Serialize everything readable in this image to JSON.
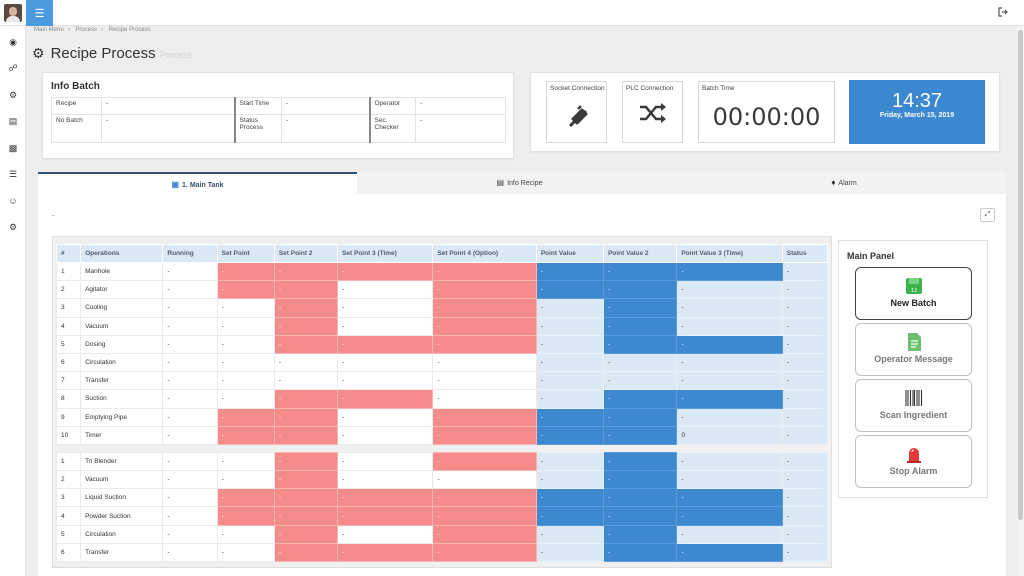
{
  "header": {
    "menu_icon": "hamburger-icon",
    "logout_icon": "logout-icon"
  },
  "sidebar": {
    "icons": [
      "dashboard-icon",
      "share-icon",
      "gear-icon",
      "document-icon",
      "book-icon",
      "database-icon",
      "user-icon",
      "settings-icon"
    ]
  },
  "breadcrumb": [
    "Main Menu",
    "Process",
    "Recipe Process"
  ],
  "page": {
    "title": "Recipe Process",
    "subtitle": "Process"
  },
  "info_batch": {
    "title": "Info Batch",
    "rows": [
      [
        "Recipe",
        "-",
        "Start Time",
        "-",
        "Operator",
        "-"
      ],
      [
        "No Batch",
        "-",
        "Status\nProcess",
        "-",
        "Sec.\nChecker",
        "-"
      ]
    ]
  },
  "status": {
    "socket_label": "Socket Connection",
    "socket_icon": "plug-icon",
    "plc_label": "PLC Connection",
    "plc_icon": "shuffle-icon",
    "batch_time_label": "Batch Time",
    "batch_time": "00:00:00"
  },
  "clock": {
    "time": "14:37",
    "date": "Friday, March 15, 2019"
  },
  "tabs": [
    {
      "label": "1. Main Tank",
      "icon": "tank-icon",
      "active": true
    },
    {
      "label": "Info Recipe",
      "icon": "document-icon",
      "active": false
    },
    {
      "label": "Alarm",
      "icon": "bell-icon",
      "active": false
    }
  ],
  "panel_header": "-",
  "table": {
    "columns": [
      "#",
      "Operations",
      "Running",
      "Set Point",
      "Set Point 2",
      "Set Point 3 (Time)",
      "Set Point 4 (Option)",
      "Point Value",
      "Point Value 2",
      "Point Value 3 (Time)",
      "Status"
    ],
    "group1": [
      {
        "n": "1",
        "op": "Manhole",
        "cells": [
          "-",
          "-",
          "-",
          "-",
          "-",
          "-",
          "-",
          "-",
          "-"
        ],
        "style": "rrrrbbbl"
      },
      {
        "n": "2",
        "op": "Agitator",
        "cells": [
          "-",
          "-",
          "-",
          "-",
          "-",
          "-",
          "-",
          "-",
          "-"
        ],
        "style": "rrwrbbll"
      },
      {
        "n": "3",
        "op": "Cooling",
        "cells": [
          "-",
          "-",
          "-",
          "-",
          "-",
          "-",
          "-",
          "-",
          "-"
        ],
        "style": "wrwrlbll"
      },
      {
        "n": "4",
        "op": "Vacuum",
        "cells": [
          "-",
          "-",
          "-",
          "-",
          "-",
          "-",
          "-",
          "-",
          "-"
        ],
        "style": "wrwrlbll"
      },
      {
        "n": "5",
        "op": "Dosing",
        "cells": [
          "-",
          "-",
          "-",
          "-",
          "-",
          "-",
          "-",
          "-",
          "-"
        ],
        "style": "wrrrlbbl"
      },
      {
        "n": "6",
        "op": "Circulation",
        "cells": [
          "-",
          "-",
          "-",
          "-",
          "-",
          "-",
          "-",
          "-",
          "-"
        ],
        "style": "wwwwllll"
      },
      {
        "n": "7",
        "op": "Transfer",
        "cells": [
          "-",
          "-",
          "-",
          "-",
          "-",
          "-",
          "-",
          "-",
          "-"
        ],
        "style": "wwwwllll"
      },
      {
        "n": "8",
        "op": "Suction",
        "cells": [
          "-",
          "-",
          "-",
          "-",
          "-",
          "-",
          "-",
          "-",
          "-"
        ],
        "style": "wrrwlbbl"
      },
      {
        "n": "9",
        "op": "Emptying Pipe",
        "cells": [
          "-",
          "-",
          "-",
          "-",
          "-",
          "-",
          "-",
          "-",
          "-"
        ],
        "style": "rrwrbbll"
      },
      {
        "n": "10",
        "op": "Timer",
        "cells": [
          "-",
          "-",
          "-",
          "-",
          "-",
          "-",
          "-",
          "0",
          "-"
        ],
        "style": "rrwrbbll"
      }
    ],
    "group2": [
      {
        "n": "1",
        "op": "Tri Blender",
        "cells": [
          "-",
          "-",
          "-",
          "-",
          "-",
          "-",
          "-",
          "-",
          "-"
        ],
        "style": "wrwrlbll"
      },
      {
        "n": "2",
        "op": "Vacuum",
        "cells": [
          "-",
          "-",
          "-",
          "-",
          "-",
          "-",
          "-",
          "-",
          "-"
        ],
        "style": "wrwwlbll"
      },
      {
        "n": "3",
        "op": "Liquid Suction",
        "cells": [
          "-",
          "-",
          "-",
          "-",
          "-",
          "-",
          "-",
          "-",
          "-"
        ],
        "style": "rrrrbbbl"
      },
      {
        "n": "4",
        "op": "Powder Suction",
        "cells": [
          "-",
          "-",
          "-",
          "-",
          "-",
          "-",
          "-",
          "-",
          "-"
        ],
        "style": "rrrrbbbl"
      },
      {
        "n": "5",
        "op": "Circulation",
        "cells": [
          "-",
          "-",
          "-",
          "-",
          "-",
          "-",
          "-",
          "-",
          "-"
        ],
        "style": "wrwrlbll"
      },
      {
        "n": "6",
        "op": "Transfer",
        "cells": [
          "-",
          "-",
          "-",
          "-",
          "-",
          "-",
          "-",
          "-",
          "-"
        ],
        "style": "wrrrlbbl"
      }
    ]
  },
  "main_panel": {
    "title": "Main Panel",
    "buttons": [
      {
        "label": "New Batch",
        "icon": "new-batch-icon",
        "color": "#3cb44b"
      },
      {
        "label": "Operator Message",
        "icon": "message-doc-icon",
        "color": "#6cc070"
      },
      {
        "label": "Scan Ingredient",
        "icon": "barcode-icon",
        "color": "#333333"
      },
      {
        "label": "Stop Alarm",
        "icon": "alarm-light-icon",
        "color": "#e03c3c"
      }
    ]
  },
  "colors": {
    "accent": "#4a9be0",
    "clock_bg": "#3b87d0",
    "setpoint_red": "#f58b8b",
    "value_blue": "#3d88cf",
    "value_light": "#dbe8f5"
  }
}
